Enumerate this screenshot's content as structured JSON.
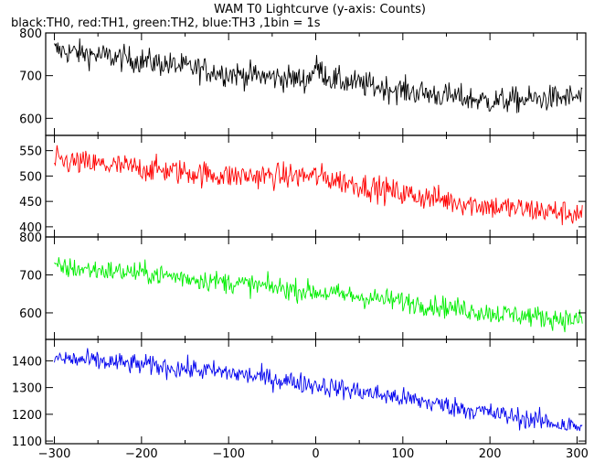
{
  "title": "WAM T0 Lightcurve (y-axis: Counts)",
  "subtitle": "black:TH0, red:TH1, green:TH2, blue:TH3 ,1bin = 1s",
  "chart_data": [
    {
      "type": "line",
      "name": "TH0",
      "color": "#000000",
      "xlim": [
        -310,
        310
      ],
      "ylim": [
        560,
        800
      ],
      "yticks": [
        600,
        700,
        800
      ],
      "x_start": -300,
      "x_end": 306,
      "bin": 1,
      "trend": [
        [
          -300,
          760
        ],
        [
          -200,
          735
        ],
        [
          -100,
          705
        ],
        [
          -10,
          690
        ],
        [
          0,
          720
        ],
        [
          20,
          690
        ],
        [
          100,
          665
        ],
        [
          200,
          640
        ],
        [
          306,
          650
        ]
      ],
      "noise": 30,
      "xticks": [
        -300,
        -200,
        -100,
        0,
        100,
        200,
        300
      ]
    },
    {
      "type": "line",
      "name": "TH1",
      "color": "#ff0000",
      "xlim": [
        -310,
        310
      ],
      "ylim": [
        380,
        580
      ],
      "yticks": [
        400,
        450,
        500,
        550
      ],
      "x_start": -300,
      "x_end": 306,
      "bin": 1,
      "trend": [
        [
          -300,
          530
        ],
        [
          -200,
          515
        ],
        [
          -100,
          500
        ],
        [
          0,
          500
        ],
        [
          100,
          465
        ],
        [
          200,
          440
        ],
        [
          306,
          425
        ]
      ],
      "noise": 25,
      "xticks": [
        -300,
        -200,
        -100,
        0,
        100,
        200,
        300
      ]
    },
    {
      "type": "line",
      "name": "TH2",
      "color": "#00ee00",
      "xlim": [
        -310,
        310
      ],
      "ylim": [
        530,
        800
      ],
      "yticks": [
        600,
        700,
        800
      ],
      "x_start": -300,
      "x_end": 306,
      "bin": 1,
      "trend": [
        [
          -300,
          720
        ],
        [
          -200,
          705
        ],
        [
          -100,
          680
        ],
        [
          0,
          655
        ],
        [
          100,
          630
        ],
        [
          200,
          600
        ],
        [
          306,
          580
        ]
      ],
      "noise": 28,
      "xticks": [
        -300,
        -200,
        -100,
        0,
        100,
        200,
        300
      ]
    },
    {
      "type": "line",
      "name": "TH3",
      "color": "#0000ee",
      "xlim": [
        -310,
        310
      ],
      "ylim": [
        1090,
        1480
      ],
      "yticks": [
        1100,
        1200,
        1300,
        1400
      ],
      "x_start": -300,
      "x_end": 306,
      "bin": 1,
      "trend": [
        [
          -300,
          1410
        ],
        [
          -200,
          1385
        ],
        [
          -100,
          1355
        ],
        [
          0,
          1310
        ],
        [
          100,
          1260
        ],
        [
          200,
          1205
        ],
        [
          306,
          1150
        ]
      ],
      "noise": 38,
      "xticks": [
        -300,
        -200,
        -100,
        0,
        100,
        200,
        300
      ]
    }
  ],
  "xtick_labels": [
    "−300",
    "−200",
    "−100",
    "0",
    "100",
    "200",
    "300"
  ]
}
